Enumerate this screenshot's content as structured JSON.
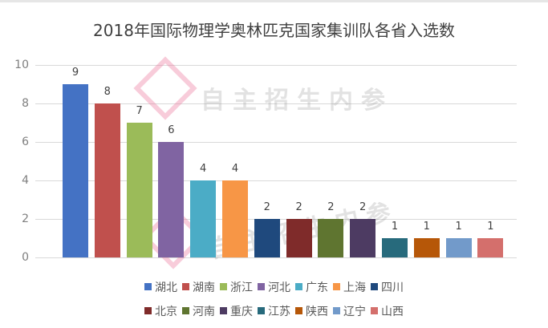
{
  "title": "2018年国际物理学奥林匹克国家集训队各省入选数",
  "watermark": {
    "text": "自主招生内参"
  },
  "chart_data": {
    "type": "bar",
    "title": "2018年国际物理学奥林匹克国家集训队各省入选数",
    "xlabel": "",
    "ylabel": "",
    "ylim": [
      0,
      10
    ],
    "yticks": [
      0,
      2,
      4,
      6,
      8,
      10
    ],
    "grid": true,
    "legend_position": "bottom",
    "categories": [
      "湖北",
      "湖南",
      "浙江",
      "河北",
      "广东",
      "上海",
      "四川",
      "北京",
      "河南",
      "重庆",
      "江苏",
      "陕西",
      "辽宁",
      "山西"
    ],
    "values": [
      9,
      8,
      7,
      6,
      4,
      4,
      2,
      2,
      2,
      2,
      1,
      1,
      1,
      1
    ],
    "colors": [
      "#4472c4",
      "#c0504d",
      "#9bbb59",
      "#8064a2",
      "#4bacc6",
      "#f79646",
      "#1f497d",
      "#7f2b2a",
      "#5f7530",
      "#4d3b62",
      "#276a7c",
      "#b65708",
      "#729aca",
      "#d46f6c"
    ],
    "series": [
      {
        "name": "湖北",
        "values": [
          9
        ],
        "color": "#4472c4"
      },
      {
        "name": "湖南",
        "values": [
          8
        ],
        "color": "#c0504d"
      },
      {
        "name": "浙江",
        "values": [
          7
        ],
        "color": "#9bbb59"
      },
      {
        "name": "河北",
        "values": [
          6
        ],
        "color": "#8064a2"
      },
      {
        "name": "广东",
        "values": [
          4
        ],
        "color": "#4bacc6"
      },
      {
        "name": "上海",
        "values": [
          4
        ],
        "color": "#f79646"
      },
      {
        "name": "四川",
        "values": [
          2
        ],
        "color": "#1f497d"
      },
      {
        "name": "北京",
        "values": [
          2
        ],
        "color": "#7f2b2a"
      },
      {
        "name": "河南",
        "values": [
          2
        ],
        "color": "#5f7530"
      },
      {
        "name": "重庆",
        "values": [
          2
        ],
        "color": "#4d3b62"
      },
      {
        "name": "江苏",
        "values": [
          1
        ],
        "color": "#276a7c"
      },
      {
        "name": "陕西",
        "values": [
          1
        ],
        "color": "#b65708"
      },
      {
        "name": "辽宁",
        "values": [
          1
        ],
        "color": "#729aca"
      },
      {
        "name": "山西",
        "values": [
          1
        ],
        "color": "#d46f6c"
      }
    ],
    "legend_rows": [
      [
        "湖北",
        "湖南",
        "浙江",
        "河北",
        "广东",
        "上海",
        "四川"
      ],
      [
        "北京",
        "河南",
        "重庆",
        "江苏",
        "陕西",
        "辽宁",
        "山西"
      ]
    ]
  }
}
